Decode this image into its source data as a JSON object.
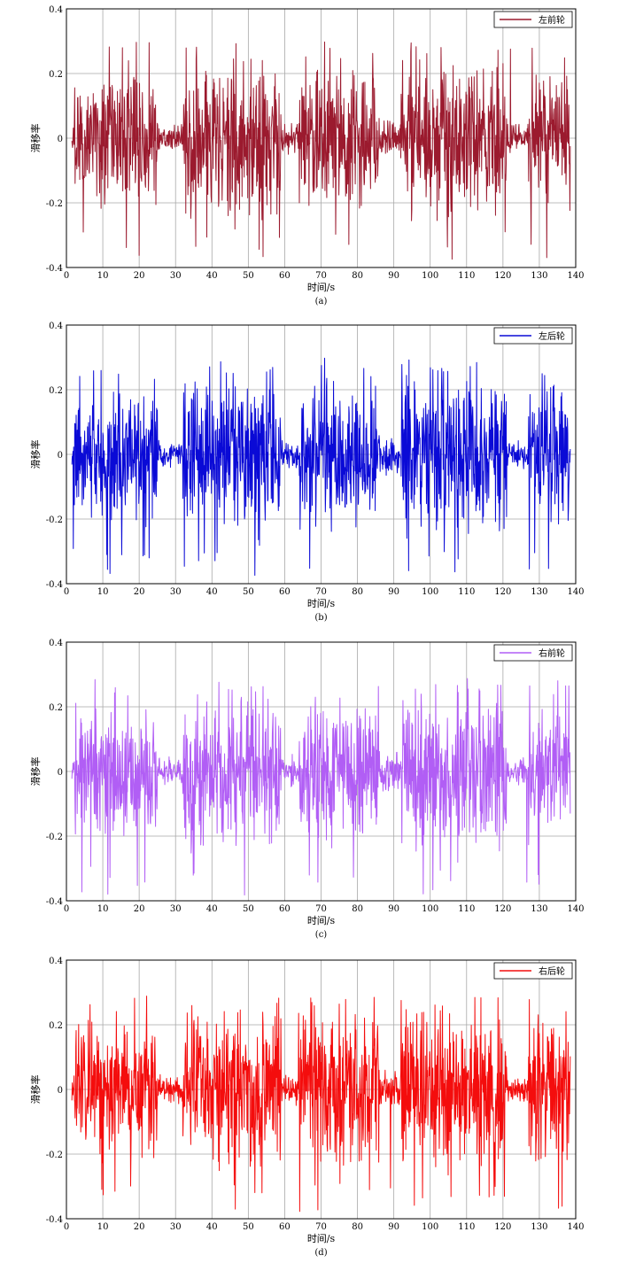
{
  "chart_data": [
    {
      "type": "line",
      "caption": "(a)",
      "xlabel": "时间/s",
      "ylabel": "滑移率",
      "xlim": [
        0,
        140
      ],
      "ylim": [
        -0.4,
        0.4
      ],
      "xticks": [
        "0",
        "10",
        "20",
        "30",
        "40",
        "50",
        "60",
        "70",
        "80",
        "90",
        "100",
        "110",
        "120",
        "130",
        "140"
      ],
      "yticks": [
        "0.4",
        "0.2",
        "0",
        "-0.2",
        "-0.4"
      ],
      "grid": true,
      "legend_position": "top-right",
      "x_range": [
        1.5,
        138.5
      ],
      "peaks": {
        "min": -0.375,
        "max": 0.3
      },
      "series": [
        {
          "name": "左前轮",
          "color": "#9b1a2e"
        }
      ]
    },
    {
      "type": "line",
      "caption": "(b)",
      "xlabel": "时间/s",
      "ylabel": "滑移率",
      "xlim": [
        0,
        140
      ],
      "ylim": [
        -0.4,
        0.4
      ],
      "xticks": [
        "0",
        "10",
        "20",
        "30",
        "40",
        "50",
        "60",
        "70",
        "80",
        "90",
        "100",
        "110",
        "120",
        "130",
        "140"
      ],
      "yticks": [
        "0.4",
        "0.2",
        "0",
        "-0.2",
        "-0.4"
      ],
      "grid": true,
      "legend_position": "top-right",
      "x_range": [
        1.5,
        138.5
      ],
      "peaks": {
        "min": -0.375,
        "max": 0.3
      },
      "series": [
        {
          "name": "左后轮",
          "color": "#0a0ad6"
        }
      ]
    },
    {
      "type": "line",
      "caption": "(c)",
      "xlabel": "时间/s",
      "ylabel": "滑移率",
      "xlim": [
        0,
        140
      ],
      "ylim": [
        -0.4,
        0.4
      ],
      "xticks": [
        "0",
        "10",
        "20",
        "30",
        "40",
        "50",
        "60",
        "70",
        "80",
        "90",
        "100",
        "110",
        "120",
        "130",
        "140"
      ],
      "yticks": [
        "0.4",
        "0.2",
        "0",
        "-0.2",
        "-0.4"
      ],
      "grid": true,
      "legend_position": "top-right",
      "x_range": [
        1.5,
        138.5
      ],
      "peaks": {
        "min": -0.385,
        "max": 0.29
      },
      "series": [
        {
          "name": "右前轮",
          "color": "#b15ef5"
        }
      ]
    },
    {
      "type": "line",
      "caption": "(d)",
      "xlabel": "时间/s",
      "ylabel": "滑移率",
      "xlim": [
        0,
        140
      ],
      "ylim": [
        -0.4,
        0.4
      ],
      "xticks": [
        "0",
        "10",
        "20",
        "30",
        "40",
        "50",
        "60",
        "70",
        "80",
        "90",
        "100",
        "110",
        "120",
        "130",
        "140"
      ],
      "yticks": [
        "0.4",
        "0.2",
        "0",
        "-0.2",
        "-0.4"
      ],
      "grid": true,
      "legend_position": "top-right",
      "x_range": [
        1.5,
        138.5
      ],
      "peaks": {
        "min": -0.385,
        "max": 0.29
      },
      "series": [
        {
          "name": "右后轮",
          "color": "#f40d0d"
        }
      ]
    }
  ]
}
